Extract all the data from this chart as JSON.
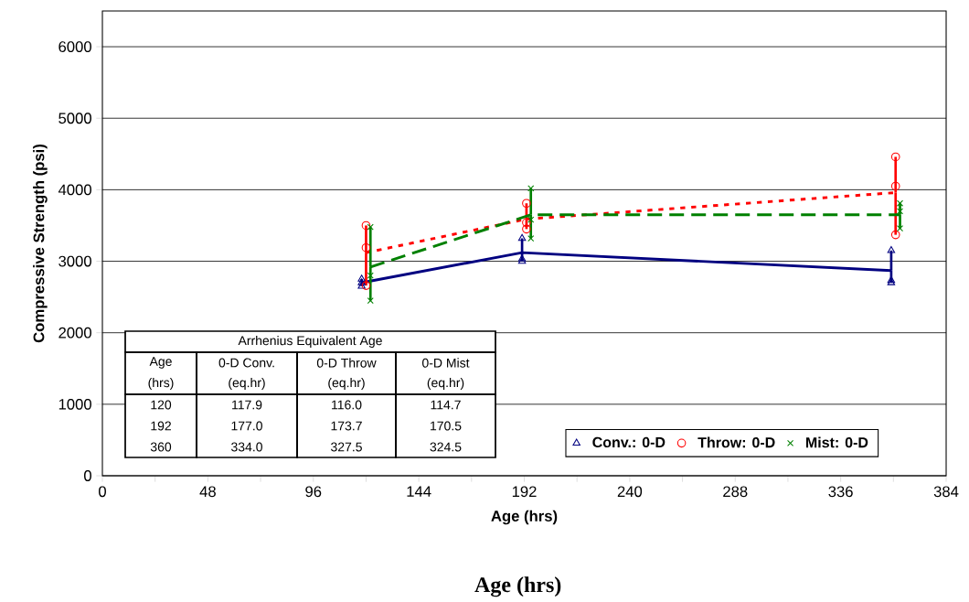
{
  "chart_data": {
    "type": "scatter",
    "xlabel": "Age (hrs)",
    "ylabel": "Compressive Strength (psi)",
    "xlim": [
      0,
      384
    ],
    "ylim": [
      0,
      6500
    ],
    "xticks": [
      0,
      {
        "value": 24,
        "label": null
      },
      48,
      {
        "value": 72,
        "label": null
      },
      96,
      {
        "value": 120,
        "label": null
      },
      144,
      {
        "value": 168,
        "label": null
      },
      192,
      {
        "value": 216,
        "label": null
      },
      240,
      {
        "value": 264,
        "label": null
      },
      288,
      {
        "value": 312,
        "label": null
      },
      336,
      {
        "value": 360,
        "label": null
      },
      384
    ],
    "yticks": [
      0,
      1000,
      2000,
      3000,
      4000,
      5000,
      6000
    ],
    "grid": "y",
    "legend": "bottom right",
    "series": [
      {
        "name": "Conv.: 0-D",
        "type": "scatter",
        "marker": "triangle",
        "color": "#000080",
        "x": [
          118,
          118,
          118,
          191,
          191,
          191,
          359,
          359,
          359
        ],
        "values": [
          2650,
          2700,
          2750,
          3000,
          3030,
          3320,
          2700,
          2730,
          3150
        ]
      },
      {
        "name": "Throw: 0-D",
        "type": "scatter",
        "marker": "circle",
        "color": "#ff0000",
        "x": [
          120,
          120,
          120,
          193,
          193,
          193,
          361,
          361,
          361
        ],
        "values": [
          2660,
          3190,
          3500,
          3450,
          3540,
          3810,
          3370,
          4050,
          4460
        ]
      },
      {
        "name": "Mist: 0-D",
        "type": "scatter",
        "marker": "cross",
        "color": "#008000",
        "x": [
          122,
          122,
          122,
          195,
          195,
          195,
          363,
          363,
          363
        ],
        "values": [
          2450,
          2800,
          3480,
          3320,
          3580,
          4020,
          3460,
          3700,
          3810
        ]
      },
      {
        "type": "line",
        "line_style": "solid",
        "color": "#000080",
        "x": [
          118,
          191,
          359
        ],
        "values": [
          2700,
          3120,
          2870
        ],
        "errors": [
          [
            2650,
            2750
          ],
          [
            3000,
            3320
          ],
          [
            2700,
            3150
          ]
        ]
      },
      {
        "type": "line",
        "line_style": "dotted",
        "color": "#ff0000",
        "x": [
          120,
          193,
          361
        ],
        "values": [
          3120,
          3590,
          3960
        ],
        "errors": [
          [
            2660,
            3500
          ],
          [
            3450,
            3810
          ],
          [
            3370,
            4460
          ]
        ]
      },
      {
        "type": "line",
        "line_style": "dashed",
        "color": "#008000",
        "x": [
          122,
          195,
          363
        ],
        "values": [
          2920,
          3650,
          3650
        ],
        "errors": [
          [
            2450,
            3480
          ],
          [
            3320,
            4020
          ],
          [
            3460,
            3810
          ]
        ]
      }
    ],
    "annotations": [
      "Arrhenius Equivalent Age",
      "Age",
      "0-D Conv.",
      "0-D Throw",
      "0-D Mist",
      "(hrs)",
      "(eq.hr)",
      "(eq.hr)",
      "(eq.hr)",
      "120",
      "117.9",
      "116.0",
      "114.7",
      "192",
      "177.0",
      "173.7",
      "170.5",
      "360",
      "334.0",
      "327.5",
      "324.5",
      "Age (hrs)"
    ]
  }
}
